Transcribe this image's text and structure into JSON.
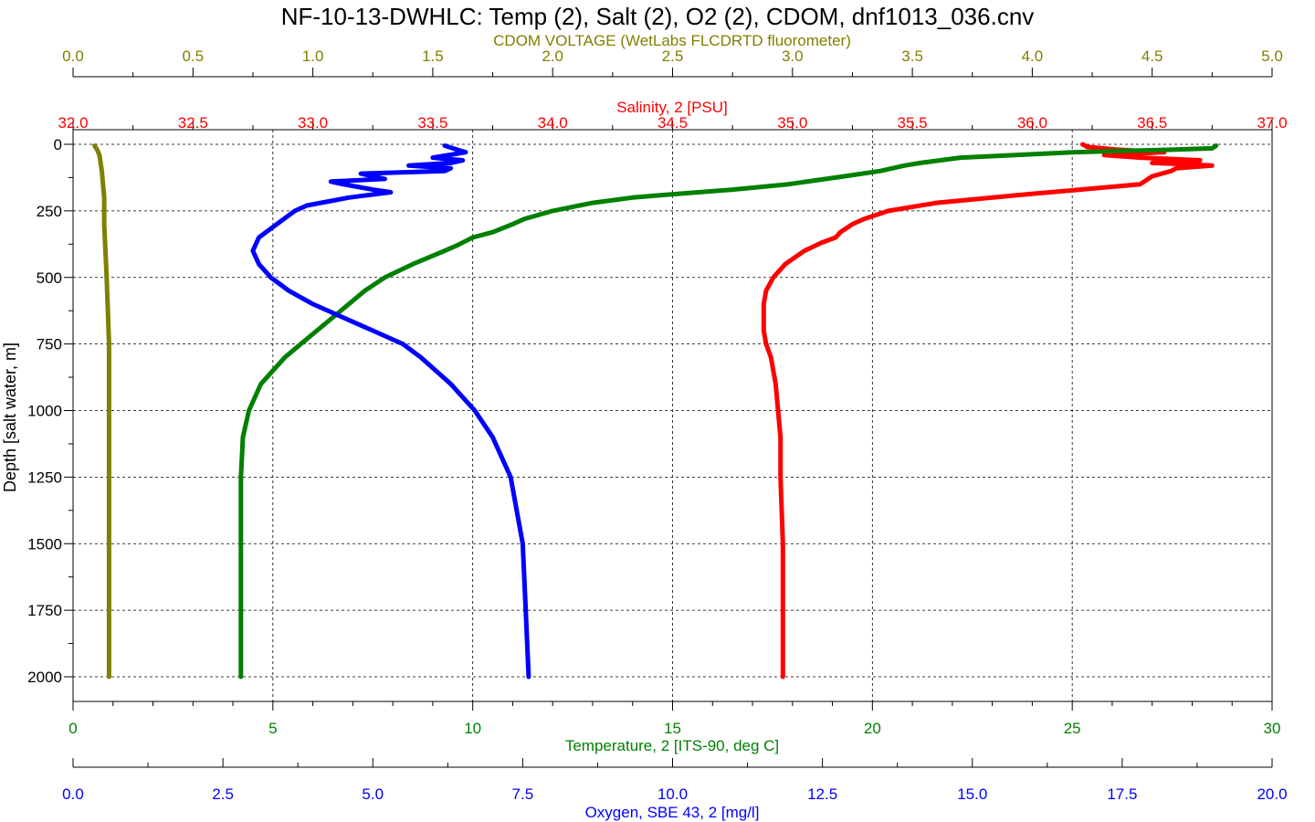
{
  "chart_data": {
    "type": "line",
    "title": "NF-10-13-DWHLC: Temp (2), Salt (2), O2 (2), CDOM, dnf1013_036.cnv",
    "grid": true,
    "ylabel": "Depth [salt water, m]",
    "ylim": [
      2100,
      0
    ],
    "yticks": [
      "0",
      "250",
      "500",
      "750",
      "1000",
      "1250",
      "1500",
      "1750",
      "2000"
    ],
    "colors": {
      "cdom": "#808000",
      "salinity": "#ff0000",
      "temperature": "#008000",
      "oxygen": "#0000ff"
    },
    "axes": {
      "cdom": {
        "label": "CDOM VOLTAGE (WetLabs FLCDRTD fluorometer)",
        "range": [
          0,
          5
        ],
        "ticks": [
          "0.0",
          "0.5",
          "1.0",
          "1.5",
          "2.0",
          "2.5",
          "3.0",
          "3.5",
          "4.0",
          "4.5",
          "5.0"
        ]
      },
      "salinity": {
        "label": "Salinity, 2 [PSU]",
        "range": [
          32,
          37
        ],
        "ticks": [
          "32.0",
          "32.5",
          "33.0",
          "33.5",
          "34.0",
          "34.5",
          "35.0",
          "35.5",
          "36.0",
          "36.5",
          "37.0"
        ]
      },
      "temperature": {
        "label": "Temperature, 2 [ITS-90, deg C]",
        "range": [
          0,
          30
        ],
        "ticks": [
          "0",
          "5",
          "10",
          "15",
          "20",
          "25",
          "30"
        ]
      },
      "oxygen": {
        "label": "Oxygen, SBE 43, 2 [mg/l]",
        "range": [
          0,
          20
        ],
        "ticks": [
          "0.0",
          "2.5",
          "5.0",
          "7.5",
          "10.0",
          "12.5",
          "15.0",
          "17.5",
          "20.0"
        ]
      }
    },
    "series": [
      {
        "key": "cdom",
        "depth": [
          5,
          20,
          40,
          100,
          200,
          300,
          500,
          750,
          1000,
          1250,
          1500,
          1750,
          2000
        ],
        "values": [
          0.09,
          0.1,
          0.11,
          0.12,
          0.13,
          0.13,
          0.14,
          0.15,
          0.15,
          0.15,
          0.15,
          0.15,
          0.15
        ]
      },
      {
        "key": "salinity",
        "depth": [
          0,
          10,
          20,
          30,
          40,
          50,
          60,
          70,
          75,
          80,
          90,
          100,
          120,
          150,
          170,
          190,
          220,
          250,
          280,
          300,
          330,
          350,
          370,
          400,
          450,
          500,
          550,
          600,
          650,
          700,
          750,
          800,
          900,
          1000,
          1100,
          1250,
          1500,
          1750,
          2000
        ],
        "values": [
          36.21,
          36.23,
          36.35,
          36.55,
          36.3,
          36.45,
          36.7,
          36.5,
          36.65,
          36.75,
          36.6,
          36.58,
          36.5,
          36.45,
          36.2,
          35.95,
          35.6,
          35.4,
          35.3,
          35.25,
          35.2,
          35.18,
          35.12,
          35.05,
          34.97,
          34.92,
          34.89,
          34.88,
          34.88,
          34.88,
          34.89,
          34.91,
          34.93,
          34.94,
          34.95,
          34.95,
          34.96,
          34.96,
          34.96
        ]
      },
      {
        "key": "temperature",
        "depth": [
          5,
          15,
          20,
          25,
          30,
          35,
          50,
          70,
          80,
          100,
          120,
          150,
          170,
          190,
          200,
          220,
          250,
          280,
          300,
          330,
          350,
          380,
          400,
          450,
          500,
          550,
          600,
          650,
          700,
          750,
          800,
          900,
          1000,
          1100,
          1250,
          1300,
          1500,
          1750,
          2000
        ],
        "values": [
          28.6,
          28.5,
          27.6,
          26.2,
          25.0,
          24.3,
          22.2,
          21.2,
          20.8,
          20.2,
          19.3,
          17.9,
          16.5,
          14.8,
          14.0,
          13.0,
          12.0,
          11.3,
          11.0,
          10.5,
          10.0,
          9.6,
          9.3,
          8.5,
          7.8,
          7.3,
          6.9,
          6.5,
          6.1,
          5.7,
          5.3,
          4.7,
          4.4,
          4.25,
          4.2,
          4.2,
          4.2,
          4.2,
          4.2
        ]
      },
      {
        "key": "oxygen",
        "depth": [
          5,
          20,
          30,
          50,
          60,
          70,
          80,
          90,
          100,
          110,
          130,
          140,
          150,
          170,
          180,
          200,
          230,
          250,
          300,
          350,
          400,
          450,
          500,
          550,
          600,
          650,
          700,
          750,
          800,
          900,
          1000,
          1100,
          1250,
          1500,
          1750,
          2000
        ],
        "values": [
          6.2,
          6.4,
          6.55,
          6.0,
          6.5,
          6.3,
          5.6,
          6.3,
          6.2,
          4.8,
          5.2,
          4.3,
          4.5,
          5.0,
          5.3,
          4.6,
          3.9,
          3.7,
          3.4,
          3.1,
          3.0,
          3.1,
          3.3,
          3.6,
          4.0,
          4.5,
          5.0,
          5.5,
          5.8,
          6.3,
          6.7,
          7.0,
          7.3,
          7.5,
          7.55,
          7.6
        ]
      }
    ]
  }
}
